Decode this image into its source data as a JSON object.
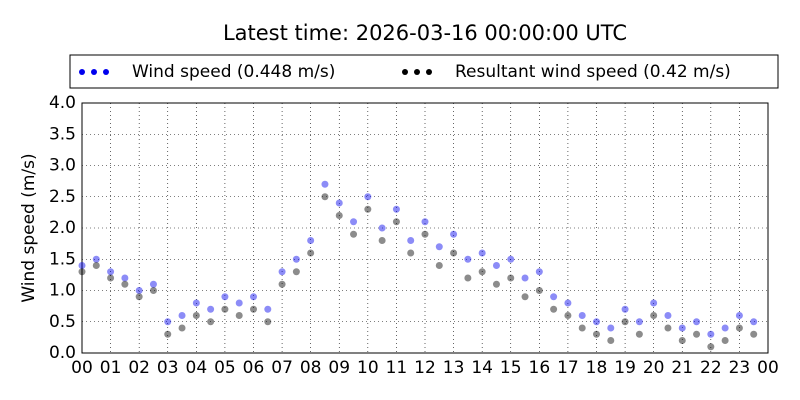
{
  "chart_data": {
    "type": "scatter",
    "title": "Latest time: 2026-03-16 00:00:00 UTC",
    "y_label": "Wind speed (m/s)",
    "x": [
      0,
      0.5,
      1,
      1.5,
      2,
      2.5,
      3,
      3.5,
      4,
      4.5,
      5,
      5.5,
      6,
      6.5,
      7,
      7.5,
      8,
      8.5,
      9,
      9.5,
      10,
      10.5,
      11,
      11.5,
      12,
      12.5,
      13,
      13.5,
      14,
      14.5,
      15,
      15.5,
      16,
      16.5,
      17,
      17.5,
      18,
      18.5,
      19,
      19.5,
      20,
      20.5,
      21,
      21.5,
      22,
      22.5,
      23,
      23.5
    ],
    "series": [
      {
        "name": "Wind speed (0.448 m/s)",
        "color": "#0000ee",
        "values": [
          1.4,
          1.5,
          1.3,
          1.2,
          1.0,
          1.1,
          0.5,
          0.6,
          0.8,
          0.7,
          0.9,
          0.8,
          0.9,
          0.7,
          1.3,
          1.5,
          1.8,
          2.7,
          2.4,
          2.1,
          2.5,
          2.0,
          2.3,
          1.8,
          2.1,
          1.7,
          1.9,
          1.5,
          1.6,
          1.4,
          1.5,
          1.2,
          1.3,
          0.9,
          0.8,
          0.6,
          0.5,
          0.4,
          0.7,
          0.5,
          0.8,
          0.6,
          0.4,
          0.5,
          0.3,
          0.4,
          0.6,
          0.5
        ]
      },
      {
        "name": "Resultant wind speed (0.42 m/s)",
        "color": "#000000",
        "values": [
          1.3,
          1.4,
          1.2,
          1.1,
          0.9,
          1.0,
          0.3,
          0.4,
          0.6,
          0.5,
          0.7,
          0.6,
          0.7,
          0.5,
          1.1,
          1.3,
          1.6,
          2.5,
          2.2,
          1.9,
          2.3,
          1.8,
          2.1,
          1.6,
          1.9,
          1.4,
          1.6,
          1.2,
          1.3,
          1.1,
          1.2,
          0.9,
          1.0,
          0.7,
          0.6,
          0.4,
          0.3,
          0.2,
          0.5,
          0.3,
          0.6,
          0.4,
          0.2,
          0.3,
          0.1,
          0.2,
          0.4,
          0.3
        ]
      }
    ],
    "xlim": [
      0,
      24
    ],
    "xticks": [
      {
        "value": 0,
        "label": "00"
      },
      {
        "value": 1,
        "label": "01"
      },
      {
        "value": 2,
        "label": "02"
      },
      {
        "value": 3,
        "label": "03"
      },
      {
        "value": 4,
        "label": "04"
      },
      {
        "value": 5,
        "label": "05"
      },
      {
        "value": 6,
        "label": "06"
      },
      {
        "value": 7,
        "label": "07"
      },
      {
        "value": 8,
        "label": "08"
      },
      {
        "value": 9,
        "label": "09"
      },
      {
        "value": 10,
        "label": "10"
      },
      {
        "value": 11,
        "label": "11"
      },
      {
        "value": 12,
        "label": "12"
      },
      {
        "value": 13,
        "label": "13"
      },
      {
        "value": 14,
        "label": "14"
      },
      {
        "value": 15,
        "label": "15"
      },
      {
        "value": 16,
        "label": "16"
      },
      {
        "value": 17,
        "label": "17"
      },
      {
        "value": 18,
        "label": "18"
      },
      {
        "value": 19,
        "label": "19"
      },
      {
        "value": 20,
        "label": "20"
      },
      {
        "value": 21,
        "label": "21"
      },
      {
        "value": 22,
        "label": "22"
      },
      {
        "value": 23,
        "label": "23"
      },
      {
        "value": 24,
        "label": "00"
      }
    ],
    "ylim": [
      0,
      4
    ],
    "yticks": [
      {
        "value": 0,
        "label": "0.0"
      },
      {
        "value": 0.5,
        "label": "0.5"
      },
      {
        "value": 1,
        "label": "1.0"
      },
      {
        "value": 1.5,
        "label": "1.5"
      },
      {
        "value": 2,
        "label": "2.0"
      },
      {
        "value": 2.5,
        "label": "2.5"
      },
      {
        "value": 3,
        "label": "3.0"
      },
      {
        "value": 3.5,
        "label": "3.5"
      },
      {
        "value": 4,
        "label": "4.0"
      }
    ],
    "grid": true
  }
}
